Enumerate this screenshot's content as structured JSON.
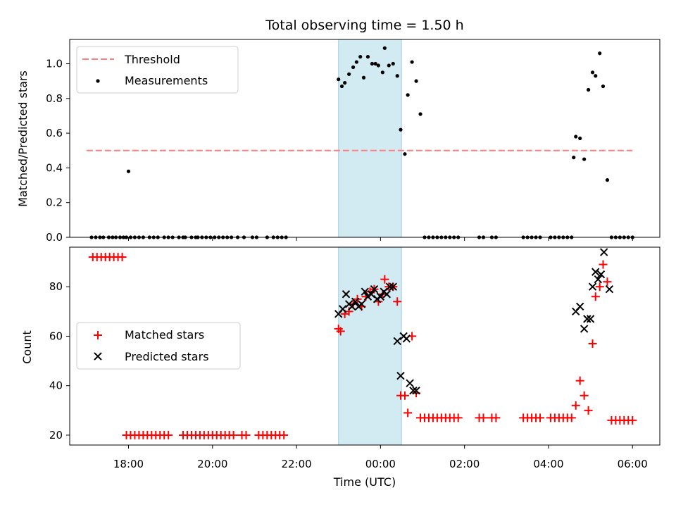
{
  "chart_data": [
    {
      "type": "scatter",
      "title": "Total observing time = 1.50 h",
      "xlabel": "",
      "ylabel": "Matched/Predicted stars",
      "ylim": [
        0,
        1.14
      ],
      "yticks": [
        "0.0",
        "0.2",
        "0.4",
        "0.6",
        "0.8",
        "1.0"
      ],
      "legend": {
        "placement": "top-left",
        "entries": [
          "Threshold",
          "Measurements"
        ]
      },
      "shaded_span_hours": [
        -1.0,
        0.5
      ],
      "threshold": {
        "name": "Threshold",
        "value": 0.5,
        "x_range_hours": [
          -7.0,
          6.0
        ],
        "color": "#ff7f7f"
      },
      "series": [
        {
          "name": "Measurements",
          "color": "#000000",
          "x_hours": [
            -6.88,
            -6.78,
            -6.68,
            -6.6,
            -6.47,
            -6.38,
            -6.3,
            -6.2,
            -6.12,
            -6.05,
            -5.95,
            -5.85,
            -5.75,
            -5.65,
            -5.5,
            -5.4,
            -5.3,
            -5.15,
            -5.05,
            -4.95,
            -4.8,
            -4.7,
            -4.65,
            -4.5,
            -4.4,
            -4.35,
            -4.25,
            -4.15,
            -4.05,
            -3.95,
            -3.85,
            -3.75,
            -3.65,
            -3.55,
            -3.4,
            -3.25,
            -3.05,
            -2.95,
            -2.7,
            -2.55,
            -2.45,
            -2.35,
            -2.25,
            -1.0,
            -0.92,
            -0.85,
            -0.75,
            -0.65,
            -0.57,
            -0.48,
            -0.4,
            -0.3,
            -0.2,
            -0.12,
            -0.05,
            0.05,
            0.1,
            0.2,
            0.3,
            0.4,
            0.48,
            0.58,
            0.65,
            0.75,
            0.85,
            0.95,
            1.05,
            1.15,
            1.25,
            1.35,
            1.45,
            1.55,
            1.65,
            1.75,
            1.85,
            2.35,
            2.45,
            2.65,
            2.75,
            3.4,
            3.5,
            3.6,
            3.7,
            3.8,
            4.05,
            4.15,
            4.25,
            4.35,
            4.45,
            4.55,
            4.6,
            4.65,
            4.75,
            4.85,
            4.95,
            5.05,
            5.12,
            5.22,
            5.3,
            5.4,
            5.5,
            5.6,
            5.7,
            5.8,
            5.9,
            6.0,
            -6.0
          ],
          "y": [
            0,
            0,
            0,
            0,
            0,
            0,
            0,
            0,
            0,
            0,
            0,
            0,
            0,
            0,
            0,
            0,
            0,
            0,
            0,
            0,
            0,
            0,
            0,
            0,
            0,
            0,
            0,
            0,
            0,
            0,
            0,
            0,
            0,
            0,
            0,
            0,
            0,
            0,
            0,
            0,
            0,
            0,
            0,
            0.91,
            0.87,
            0.89,
            0.94,
            0.98,
            1.01,
            1.04,
            0.92,
            1.04,
            1.0,
            1.0,
            0.99,
            0.95,
            1.09,
            0.99,
            1.0,
            0.93,
            0.62,
            0.48,
            0.82,
            1.01,
            0.9,
            0.71,
            0,
            0,
            0,
            0,
            0,
            0,
            0,
            0,
            0,
            0,
            0,
            0,
            0,
            0,
            0,
            0,
            0,
            0,
            0,
            0,
            0,
            0,
            0,
            0,
            0.46,
            0.58,
            0.57,
            0.45,
            0.85,
            0.95,
            0.93,
            1.06,
            0.87,
            0.33,
            0,
            0,
            0,
            0,
            0,
            0,
            0.38
          ]
        }
      ]
    },
    {
      "type": "scatter",
      "title": "",
      "xlabel": "Time (UTC)",
      "ylabel": "Count",
      "ylim": [
        16,
        96
      ],
      "yticks": [
        "20",
        "40",
        "60",
        "80"
      ],
      "xticks": [
        "18:00",
        "20:00",
        "22:00",
        "00:00",
        "02:00",
        "04:00",
        "06:00"
      ],
      "xlim_hours": [
        -7.4,
        6.65
      ],
      "legend": {
        "placement": "center-left",
        "entries": [
          "Matched stars",
          "Predicted stars"
        ]
      },
      "shaded_span_hours": [
        -1.0,
        0.5
      ],
      "series": [
        {
          "name": "Matched stars",
          "marker": "plus",
          "color": "#ff0000",
          "x_hours": [
            -6.85,
            -6.75,
            -6.65,
            -6.55,
            -6.45,
            -6.35,
            -6.25,
            -6.15,
            -6.05,
            -5.95,
            -5.85,
            -5.75,
            -5.65,
            -5.55,
            -5.45,
            -5.35,
            -5.25,
            -5.15,
            -5.05,
            -4.7,
            -4.6,
            -4.5,
            -4.4,
            -4.3,
            -4.2,
            -4.1,
            -4.0,
            -3.9,
            -3.8,
            -3.7,
            -3.6,
            -3.5,
            -3.3,
            -3.2,
            -2.9,
            -2.8,
            -2.7,
            -2.6,
            -2.5,
            -2.4,
            -2.3,
            -1.0,
            -0.95,
            -0.85,
            -0.75,
            -0.65,
            -0.55,
            -0.45,
            -0.35,
            -0.25,
            -0.15,
            -0.05,
            0.05,
            0.1,
            0.2,
            0.3,
            0.4,
            0.48,
            0.58,
            0.65,
            0.75,
            0.85,
            0.95,
            1.05,
            1.15,
            1.25,
            1.35,
            1.45,
            1.55,
            1.65,
            1.75,
            1.85,
            2.35,
            2.45,
            2.65,
            2.75,
            3.4,
            3.5,
            3.6,
            3.7,
            3.8,
            4.05,
            4.15,
            4.25,
            4.35,
            4.45,
            4.55,
            4.65,
            4.75,
            4.85,
            4.95,
            5.05,
            5.12,
            5.22,
            5.3,
            5.4,
            5.5,
            5.6,
            5.7,
            5.8,
            5.9,
            6.0
          ],
          "y": [
            92,
            92,
            92,
            92,
            92,
            92,
            92,
            92,
            20,
            20,
            20,
            20,
            20,
            20,
            20,
            20,
            20,
            20,
            20,
            20,
            20,
            20,
            20,
            20,
            20,
            20,
            20,
            20,
            20,
            20,
            20,
            20,
            20,
            20,
            20,
            20,
            20,
            20,
            20,
            20,
            20,
            63,
            62,
            69,
            70,
            73,
            75,
            72,
            76,
            78,
            79,
            74,
            77,
            83,
            80,
            80,
            74,
            36,
            36,
            29,
            60,
            37,
            27,
            27,
            27,
            27,
            27,
            27,
            27,
            27,
            27,
            27,
            27,
            27,
            27,
            27,
            27,
            27,
            27,
            27,
            27,
            27,
            27,
            27,
            27,
            27,
            27,
            32,
            42,
            36,
            30,
            57,
            76,
            80,
            89,
            82,
            26,
            26,
            26,
            26,
            26,
            26
          ]
        },
        {
          "name": "Predicted stars",
          "marker": "x",
          "color": "#000000",
          "x_hours": [
            -1.0,
            -0.9,
            -0.82,
            -0.75,
            -0.68,
            -0.6,
            -0.52,
            -0.45,
            -0.37,
            -0.3,
            -0.22,
            -0.15,
            -0.08,
            0.0,
            0.08,
            0.15,
            0.22,
            0.3,
            0.4,
            0.48,
            0.55,
            0.62,
            0.7,
            0.78,
            0.85,
            4.65,
            4.75,
            4.85,
            4.92,
            5.0,
            5.05,
            5.12,
            5.18,
            5.25,
            5.32,
            5.45
          ],
          "y": [
            69,
            71,
            77,
            73,
            72,
            74,
            72,
            73,
            78,
            76,
            77,
            79,
            75,
            76,
            78,
            77,
            80,
            80,
            58,
            44,
            60,
            59,
            41,
            38,
            38,
            70,
            72,
            63,
            67,
            67,
            80,
            86,
            83,
            85,
            94,
            79
          ]
        }
      ]
    }
  ]
}
